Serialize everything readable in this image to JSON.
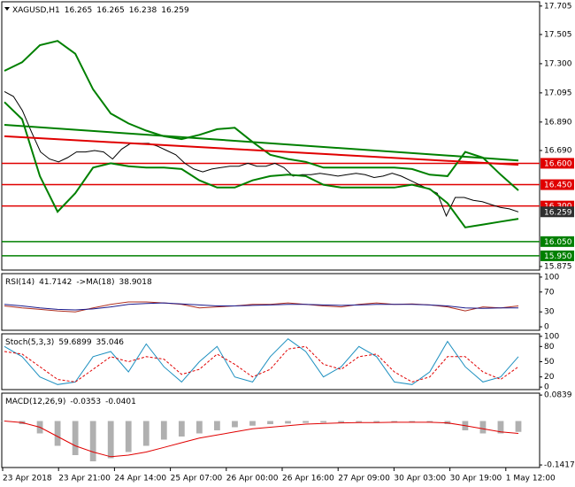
{
  "chart_data": [
    {
      "type": "line",
      "readout": [
        "XAGUSD,H1",
        16.265,
        16.265,
        16.238,
        16.259
      ],
      "ylim": [
        15.85,
        17.735
      ],
      "yticks": [
        17.705,
        17.505,
        {
          "value": 17.3,
          "label": "17.300"
        },
        17.095,
        {
          "value": 16.89,
          "label": "16.890"
        },
        {
          "value": 16.69,
          "label": "16.690"
        },
        15.875
      ],
      "levels": [
        {
          "value": 16.6,
          "label": "16.600",
          "color": "#e00000"
        },
        {
          "value": 16.45,
          "label": "16.450",
          "color": "#e00000"
        },
        {
          "value": 16.3,
          "label": "16.300",
          "color": "#e00000"
        },
        {
          "value": 16.05,
          "label": "16.050",
          "color": "#008000"
        },
        {
          "value": 15.95,
          "label": "15.950",
          "color": "#008000"
        }
      ],
      "price_box_color": "#303030",
      "series": [
        {
          "color": "#000000",
          "width": 1,
          "values": [
            17.104,
            17.07,
            16.97,
            16.82,
            16.68,
            16.63,
            16.61,
            16.64,
            16.68,
            16.68,
            16.69,
            16.68,
            16.63,
            16.7,
            16.74,
            16.74,
            16.74,
            16.72,
            16.69,
            16.66,
            16.6,
            16.56,
            16.54,
            16.56,
            16.57,
            16.58,
            16.58,
            16.6,
            16.58,
            16.58,
            16.6,
            16.57,
            16.51,
            16.52,
            16.52,
            16.53,
            16.52,
            16.51,
            16.52,
            16.53,
            16.52,
            16.5,
            16.51,
            16.53,
            16.51,
            16.48,
            16.45,
            16.42,
            16.39,
            16.23,
            16.36,
            16.36,
            16.34,
            16.33,
            16.31,
            16.29,
            16.28,
            16.259
          ]
        },
        {
          "color": "#008000",
          "width": 2,
          "values": [
            17.25,
            17.31,
            17.43,
            17.46,
            17.37,
            17.12,
            16.95,
            16.88,
            16.83,
            16.79,
            16.77,
            16.8,
            16.84,
            16.85,
            16.75,
            16.66,
            16.63,
            16.61,
            16.57,
            16.57,
            16.57,
            16.57,
            16.57,
            16.56,
            16.52,
            16.51,
            16.68,
            16.64,
            16.52,
            16.41
          ]
        },
        {
          "color": "#008000",
          "width": 2,
          "values": [
            17.03,
            16.91,
            16.51,
            16.26,
            16.39,
            16.57,
            16.6,
            16.58,
            16.57,
            16.57,
            16.56,
            16.48,
            16.43,
            16.43,
            16.48,
            16.51,
            16.52,
            16.51,
            16.45,
            16.43,
            16.43,
            16.43,
            16.43,
            16.45,
            16.42,
            16.32,
            16.15,
            16.17,
            16.19,
            16.21
          ]
        },
        {
          "color": "#e00000",
          "width": 2,
          "values": [
            16.79,
            16.59
          ]
        },
        {
          "color": "#008000",
          "width": 2,
          "values": [
            16.87,
            16.62
          ]
        }
      ],
      "time_axis": [
        "23 Apr 2018",
        "23 Apr 21:00",
        "24 Apr 14:00",
        "25 Apr 07:00",
        "26 Apr 00:00",
        "26 Apr 16:00",
        "27 Apr 09:00",
        "30 Apr 03:00",
        "30 Apr 19:00",
        "1 May 12:00"
      ]
    },
    {
      "type": "line",
      "readout": [
        "RSI(14)",
        41.7142,
        "->MA(18)",
        38.9018
      ],
      "ylim": [
        -7,
        107
      ],
      "yticks": [
        100,
        70,
        30,
        0
      ],
      "series": [
        {
          "color": "#b03020",
          "width": 1,
          "values": [
            42,
            38,
            35,
            32,
            30,
            38,
            45,
            50,
            50,
            48,
            45,
            38,
            40,
            42,
            45,
            45,
            48,
            45,
            42,
            40,
            45,
            48,
            45,
            46,
            44,
            40,
            32,
            40,
            38,
            42
          ]
        },
        {
          "color": "#1a1a8c",
          "width": 1,
          "values": [
            45,
            42,
            38,
            35,
            34,
            36,
            40,
            45,
            47,
            48,
            46,
            44,
            42,
            42,
            43,
            44,
            45,
            45,
            44,
            43,
            44,
            45,
            45,
            45,
            44,
            42,
            38,
            37,
            38,
            38
          ]
        }
      ]
    },
    {
      "type": "line",
      "readout": [
        "Stoch(5,3,3)",
        59.6899,
        35.046
      ],
      "ylim": [
        -5,
        105
      ],
      "yticks": [
        100,
        80,
        50,
        20,
        0
      ],
      "series": [
        {
          "color": "#1e90c0",
          "width": 1,
          "values": [
            80,
            60,
            20,
            5,
            10,
            60,
            70,
            30,
            85,
            40,
            10,
            50,
            80,
            20,
            10,
            60,
            95,
            70,
            20,
            40,
            80,
            60,
            10,
            5,
            30,
            90,
            40,
            10,
            20,
            60
          ]
        },
        {
          "color": "#e00000",
          "width": 1,
          "dash": true,
          "values": [
            70,
            65,
            40,
            15,
            10,
            35,
            60,
            50,
            60,
            55,
            25,
            35,
            65,
            45,
            20,
            35,
            75,
            80,
            45,
            35,
            60,
            65,
            30,
            10,
            20,
            60,
            60,
            30,
            15,
            40
          ]
        }
      ]
    },
    {
      "type": "macd",
      "readout": [
        "MACD(12,26,9)",
        -0.0353,
        -0.0401
      ],
      "ylim": [
        -0.15,
        0.09
      ],
      "yticks": [
        0.0839,
        -0.1417
      ],
      "bar_color": "#b0b0b0",
      "values": [
        0,
        -0.01,
        -0.04,
        -0.08,
        -0.11,
        -0.13,
        -0.12,
        -0.1,
        -0.08,
        -0.06,
        -0.05,
        -0.04,
        -0.03,
        -0.02,
        -0.015,
        -0.01,
        -0.008,
        -0.006,
        -0.005,
        -0.005,
        -0.004,
        -0.004,
        -0.003,
        -0.003,
        -0.004,
        -0.01,
        -0.03,
        -0.04,
        -0.04,
        -0.035
      ],
      "series": [
        {
          "color": "#e00000",
          "width": 1,
          "values": [
            0,
            -0.005,
            -0.02,
            -0.05,
            -0.08,
            -0.1,
            -0.115,
            -0.11,
            -0.1,
            -0.085,
            -0.07,
            -0.055,
            -0.045,
            -0.035,
            -0.025,
            -0.02,
            -0.015,
            -0.01,
            -0.008,
            -0.006,
            -0.005,
            -0.005,
            -0.004,
            -0.004,
            -0.004,
            -0.006,
            -0.015,
            -0.025,
            -0.035,
            -0.04
          ]
        }
      ]
    }
  ]
}
